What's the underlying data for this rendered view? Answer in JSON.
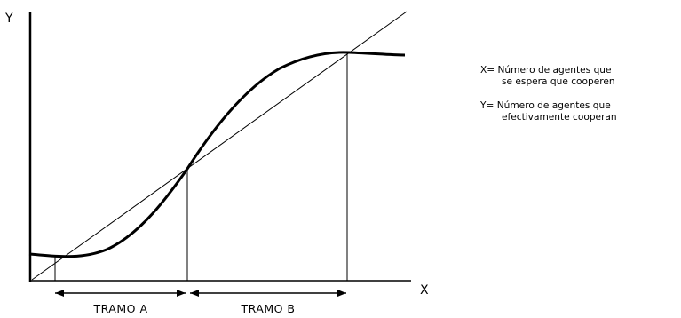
{
  "axes": {
    "y_label": "Y",
    "x_label": "X"
  },
  "ranges": [
    {
      "label": "TRAMO A"
    },
    {
      "label": "TRAMO B"
    }
  ],
  "legend": [
    {
      "line1": "X= Número de agentes que",
      "line2": "se espera que cooperen"
    },
    {
      "line1": "Y= Número de agentes que",
      "line2": "efectivamente cooperan"
    }
  ],
  "colors": {
    "line": "#000000",
    "background": "#ffffff"
  }
}
